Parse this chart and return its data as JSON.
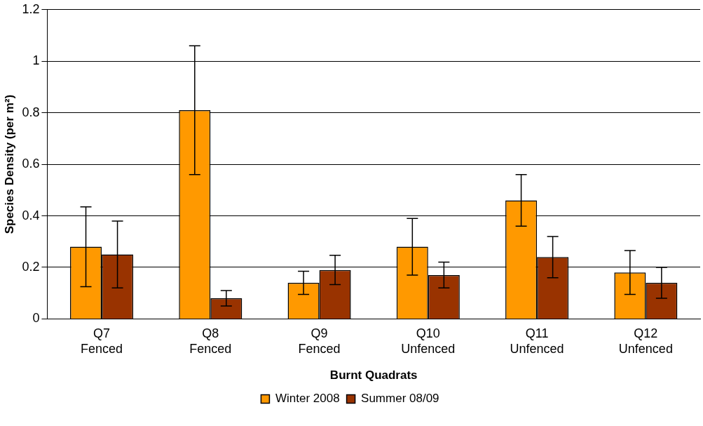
{
  "chart_data": {
    "type": "bar",
    "xlabel": "Burnt Quadrats",
    "ylabel": "Species Density (per m²)",
    "categories": [
      "Q7\nFenced",
      "Q8\nFenced",
      "Q9\nFenced",
      "Q10\nUnfenced",
      "Q11\nUnfenced",
      "Q12\nUnfenced"
    ],
    "series": [
      {
        "name": "Winter 2008",
        "color": "#ff9900",
        "values": [
          0.28,
          0.81,
          0.14,
          0.28,
          0.46,
          0.18
        ],
        "errors": [
          0.155,
          0.25,
          0.045,
          0.11,
          0.1,
          0.085
        ]
      },
      {
        "name": "Summer 08/09",
        "color": "#993300",
        "values": [
          0.25,
          0.08,
          0.19,
          0.17,
          0.24,
          0.14
        ],
        "errors": [
          0.13,
          0.03,
          0.057,
          0.05,
          0.08,
          0.06
        ]
      }
    ],
    "ylim": [
      0,
      1.2
    ],
    "yticks": [
      0,
      0.2,
      0.4,
      0.6,
      0.8,
      1,
      1.2
    ],
    "grid": "y",
    "legend": "bottom"
  }
}
